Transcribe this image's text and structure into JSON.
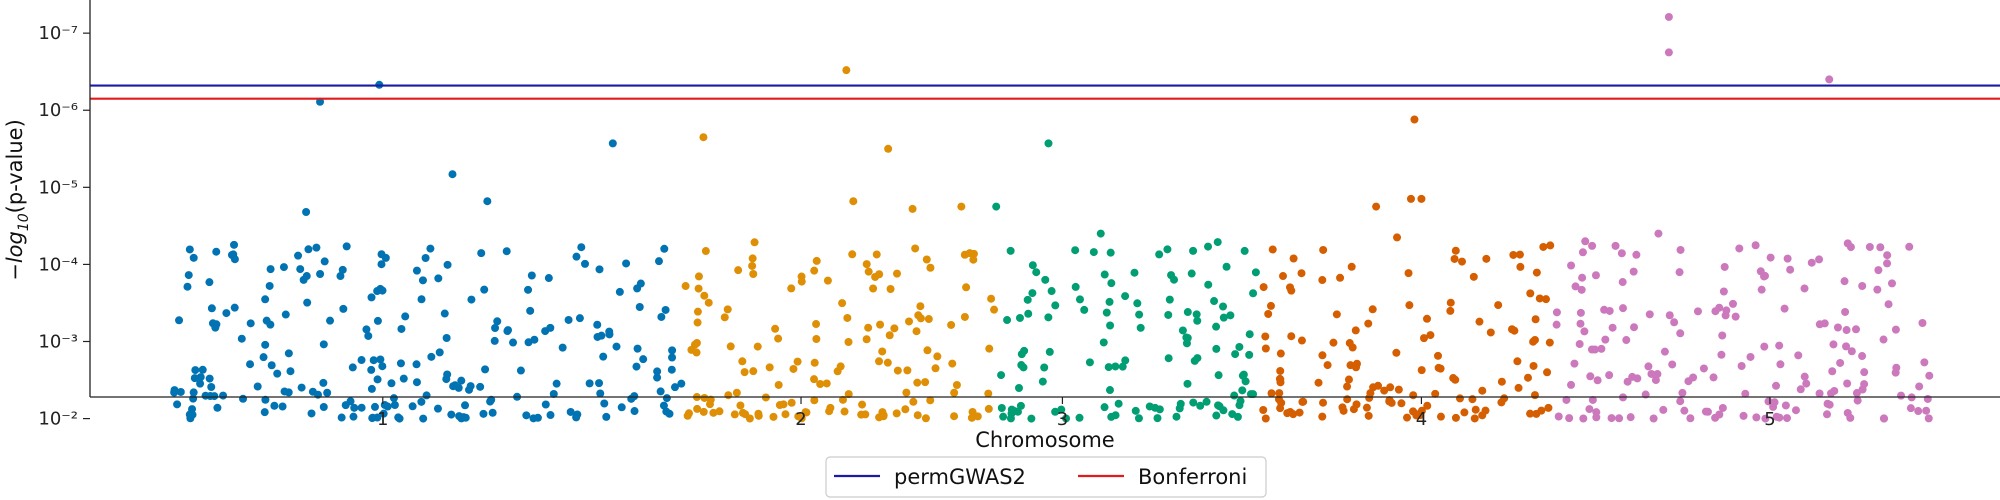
{
  "chart_data": {
    "type": "scatter",
    "title": "",
    "xlabel": "Chromosome",
    "ylabel": "-log10(p-value)",
    "ylabel_parts": {
      "minus": "−",
      "log": "log",
      "sub": "10",
      "rest": "(p-value)"
    },
    "y_scale": "log-inverted",
    "y_exp_range": [
      -2.28,
      -7.43
    ],
    "x_ticks": [
      {
        "label": "1",
        "pos": 0.3
      },
      {
        "label": "2",
        "pos": 0.9
      },
      {
        "label": "3",
        "pos": 1.275
      },
      {
        "label": "4",
        "pos": 1.79
      },
      {
        "label": "5",
        "pos": 2.29
      }
    ],
    "y_ticks": [
      {
        "label": "10⁻²",
        "exp": -2
      },
      {
        "label": "10⁻³",
        "exp": -3
      },
      {
        "label": "10⁻⁴",
        "exp": -4
      },
      {
        "label": "10⁻⁵",
        "exp": -5
      },
      {
        "label": "10⁻⁶",
        "exp": -6
      },
      {
        "label": "10⁻⁷",
        "exp": -7
      }
    ],
    "thresholds": [
      {
        "name": "permGWAS2",
        "exp": -6.32,
        "color": "#1a1aa6"
      },
      {
        "name": "Bonferroni",
        "exp": -6.15,
        "color": "#e31a1c"
      }
    ],
    "chromosomes": [
      {
        "name": "1",
        "color": "#0173b2",
        "x_range": [
          0.0,
          0.73
        ],
        "highlights": [
          [
            0.21,
            -6.11
          ],
          [
            0.295,
            -6.33
          ],
          [
            0.63,
            -5.57
          ],
          [
            0.45,
            -4.82
          ],
          [
            0.19,
            -4.68
          ],
          [
            0.4,
            -5.17
          ]
        ]
      },
      {
        "name": "2",
        "color": "#de8f05",
        "x_range": [
          0.73,
          1.18
        ],
        "highlights": [
          [
            0.965,
            -6.52
          ],
          [
            1.025,
            -5.5
          ],
          [
            0.76,
            -5.65
          ],
          [
            0.975,
            -4.82
          ],
          [
            1.06,
            -4.72
          ],
          [
            1.13,
            -4.75
          ]
        ]
      },
      {
        "name": "3",
        "color": "#029e73",
        "x_range": [
          1.18,
          1.56
        ],
        "highlights": [
          [
            1.255,
            -5.57
          ],
          [
            1.18,
            -4.75
          ],
          [
            1.33,
            -4.4
          ]
        ]
      },
      {
        "name": "4",
        "color": "#d55e00",
        "x_range": [
          1.56,
          1.98
        ],
        "highlights": [
          [
            1.78,
            -5.88
          ],
          [
            1.725,
            -4.75
          ],
          [
            1.775,
            -4.85
          ],
          [
            1.79,
            -4.85
          ],
          [
            1.755,
            -4.35
          ]
        ]
      },
      {
        "name": "5",
        "color": "#cc78bc",
        "x_range": [
          1.98,
          2.52
        ],
        "highlights": [
          [
            2.145,
            -7.21
          ],
          [
            2.145,
            -6.75
          ],
          [
            2.375,
            -6.4
          ],
          [
            2.025,
            -4.3
          ],
          [
            2.13,
            -4.4
          ]
        ]
      }
    ],
    "legend": {
      "placement": "bottom-center"
    }
  }
}
